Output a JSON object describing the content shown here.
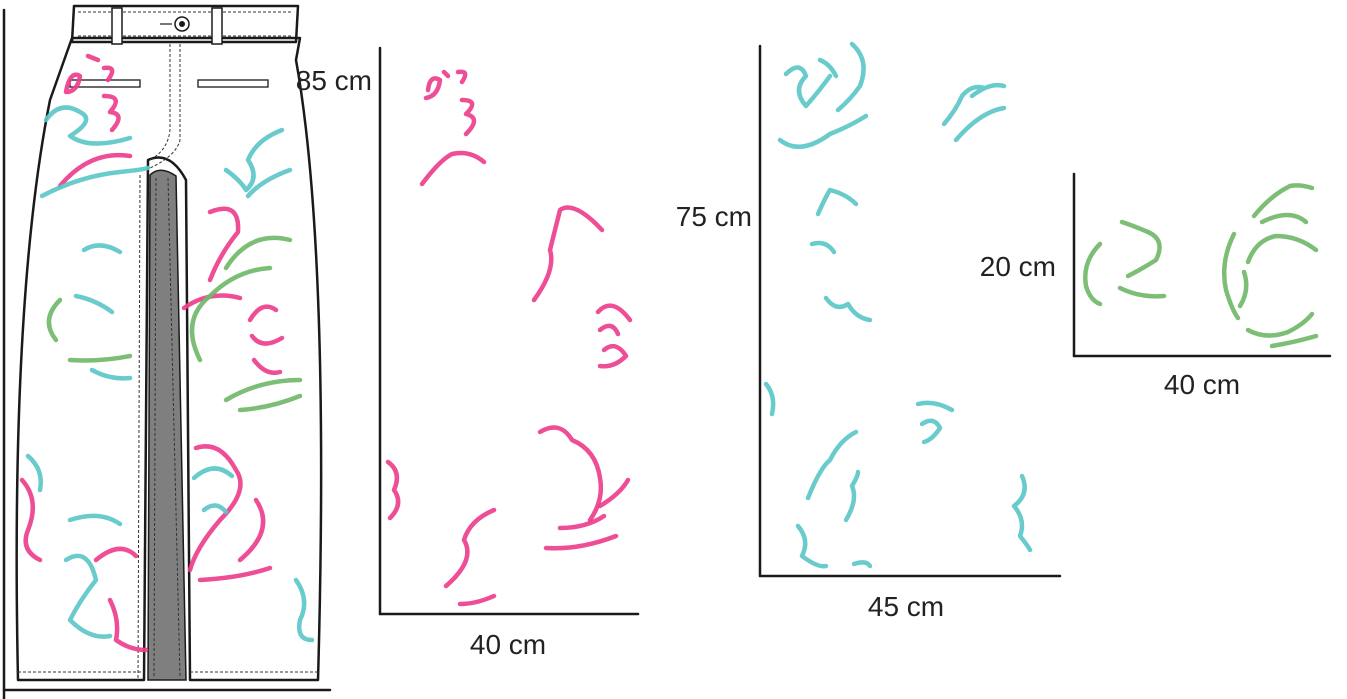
{
  "panels": [
    {
      "id": "skirt-panel-large",
      "height_label": "85 cm",
      "width_label": "40 cm"
    },
    {
      "id": "skirt-panel-medium",
      "height_label": "75 cm",
      "width_label": "45 cm"
    },
    {
      "id": "waistband-panel",
      "height_label": "20 cm",
      "width_label": "40 cm"
    }
  ],
  "colors": {
    "pink": "#ec3f8c",
    "teal": "#5cc7c8",
    "green": "#72b96a",
    "outline": "#1a1a1a",
    "slit_gray": "#7f7f7f"
  }
}
